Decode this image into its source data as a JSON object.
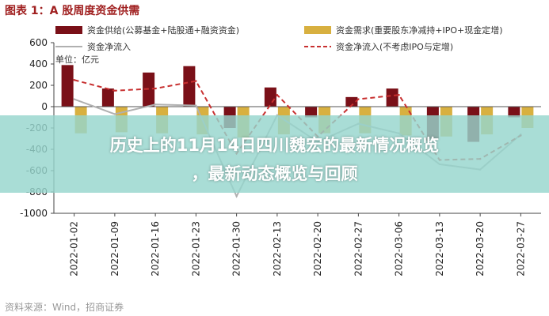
{
  "figure_title": "图表 1：A 股周度资金供需",
  "source": "资料来源：Wind，招商证券",
  "overlay": {
    "line1": "历史上的11月14日四川魏宏的最新情况概览",
    "line2": "，最新动态概览与回顾"
  },
  "colors": {
    "supply": "#7a1018",
    "demand": "#d8b040",
    "net_flow": "#b0b0b0",
    "net_flow_ex_ipo": "#c83030",
    "title": "#a02020",
    "overlay": "#96d6cd"
  },
  "chart_data": {
    "type": "bar",
    "unit": "单位：亿元",
    "ylim": [
      -1000,
      600
    ],
    "yticks": [
      600,
      400,
      200,
      0,
      -200,
      -400,
      -600,
      -800,
      -1000
    ],
    "categories": [
      "2022-01-02",
      "2022-01-09",
      "2022-01-16",
      "2022-01-23",
      "2022-01-30",
      "2022-02-13",
      "2022-02-20",
      "2022-02-27",
      "2022-03-06",
      "2022-03-13",
      "2022-03-20",
      "2022-03-27"
    ],
    "series": [
      {
        "name": "资金供给(公募基金+陆股通+融资资金)",
        "type": "bar",
        "values": [
          390,
          170,
          320,
          380,
          -200,
          180,
          -100,
          90,
          170,
          -300,
          -330,
          -100
        ]
      },
      {
        "name": "资金需求(重要股东净减持+IPO+现金定增)",
        "type": "bar",
        "values": [
          -250,
          -240,
          -250,
          -260,
          -290,
          -260,
          -250,
          -250,
          -270,
          -280,
          -260,
          -200
        ]
      },
      {
        "name": "资金净流入",
        "type": "line",
        "values": [
          70,
          -70,
          20,
          10,
          -840,
          -80,
          -330,
          -160,
          -250,
          -540,
          -590,
          -260
        ]
      },
      {
        "name": "资金净流入(不考虑IPO与定增)",
        "type": "dashed",
        "values": [
          250,
          150,
          170,
          240,
          -440,
          110,
          -280,
          70,
          110,
          -500,
          -490,
          -270
        ]
      }
    ]
  }
}
